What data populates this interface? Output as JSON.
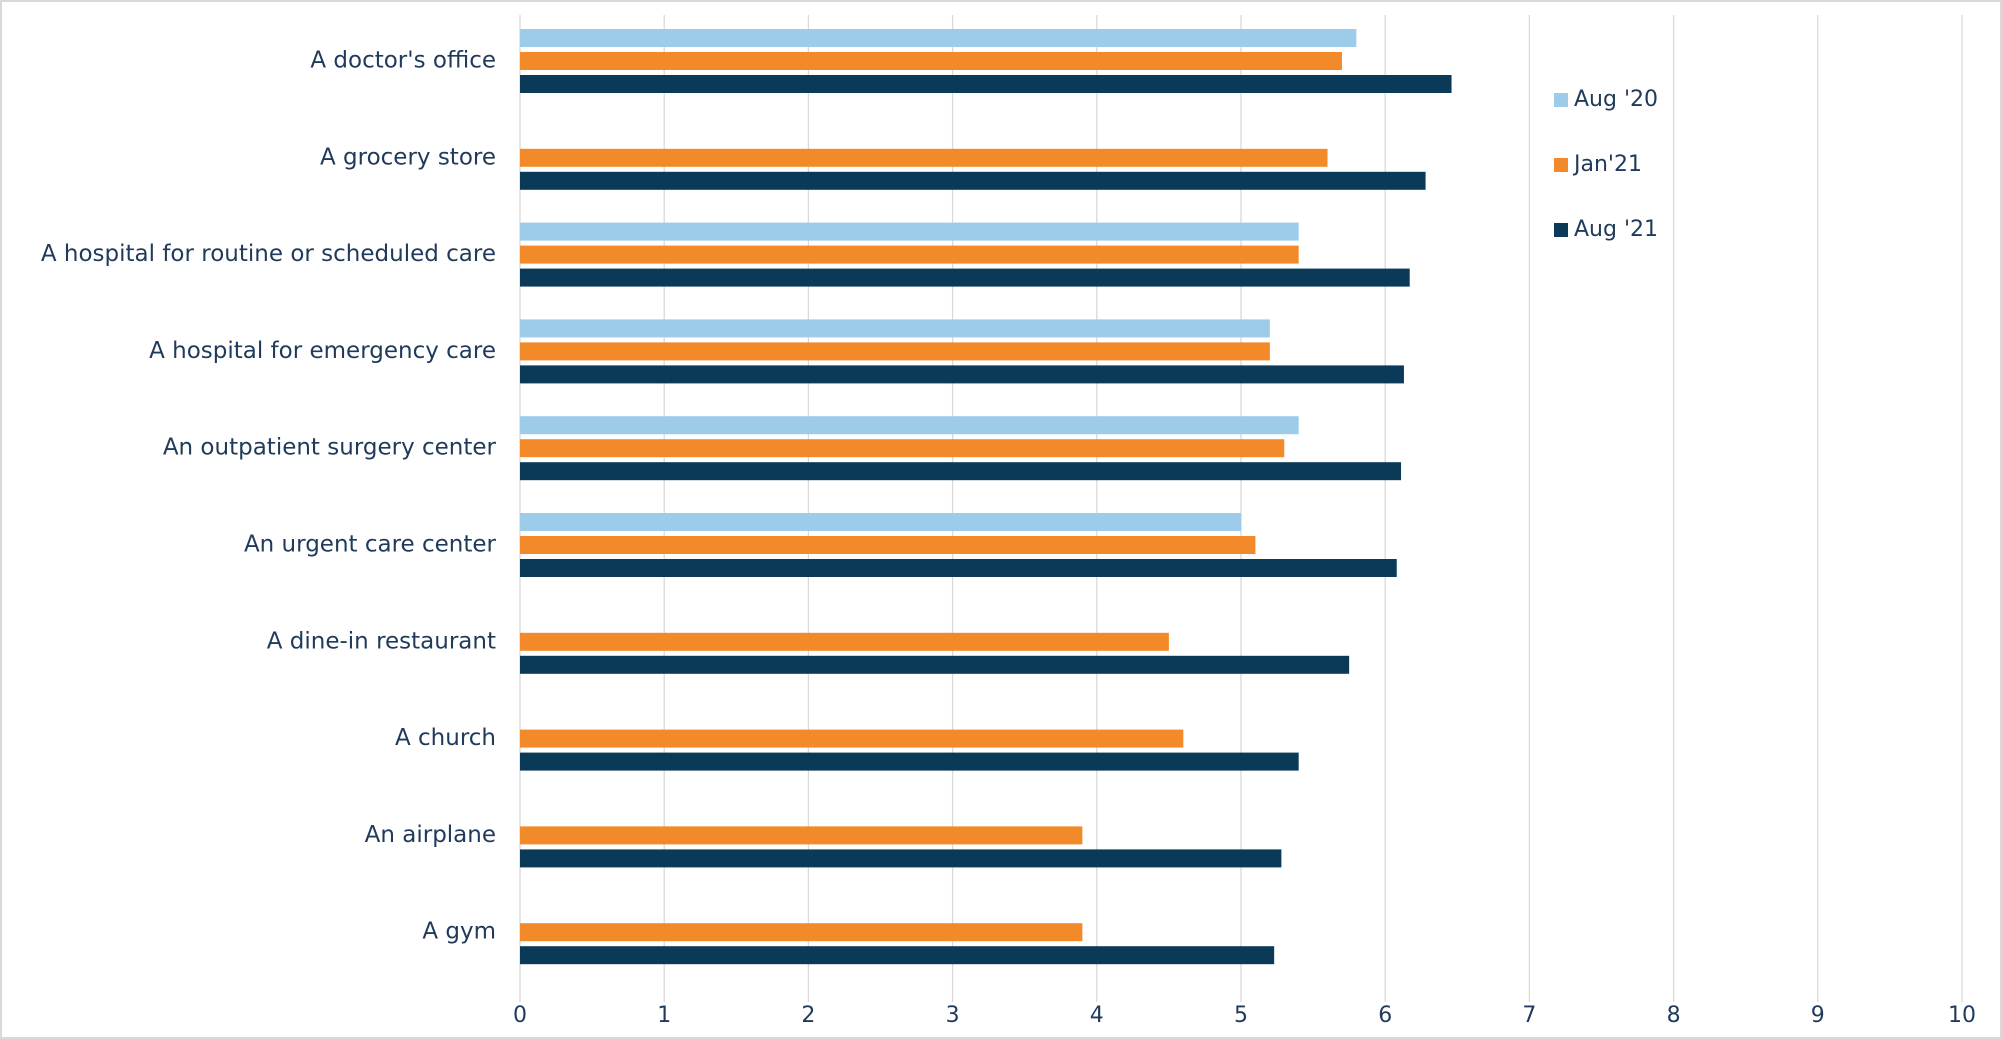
{
  "chart_data": {
    "type": "bar",
    "orientation": "horizontal",
    "categories": [
      "A doctor's office",
      "A grocery store",
      "A hospital for routine or scheduled care",
      "A hospital for emergency care",
      "An outpatient surgery center",
      "An urgent care center",
      "A dine-in restaurant",
      "A church",
      "An airplane",
      "A gym"
    ],
    "series": [
      {
        "name": "Aug '20",
        "color": "#9dcbea",
        "values": [
          5.8,
          null,
          5.4,
          5.2,
          5.4,
          5.0,
          null,
          null,
          null,
          null
        ]
      },
      {
        "name": "Jan'21",
        "color": "#f28a2a",
        "values": [
          5.7,
          5.6,
          5.4,
          5.2,
          5.3,
          5.1,
          4.5,
          4.6,
          3.9,
          3.9
        ]
      },
      {
        "name": "Aug '21",
        "color": "#0a3a57",
        "values": [
          6.46,
          6.28,
          6.17,
          6.13,
          6.11,
          6.08,
          5.75,
          5.4,
          5.28,
          5.23
        ]
      }
    ],
    "xlim": [
      0,
      10
    ],
    "xticks": [
      0,
      1,
      2,
      3,
      4,
      5,
      6,
      7,
      8,
      9,
      10
    ],
    "grid": true,
    "legend": "right"
  }
}
